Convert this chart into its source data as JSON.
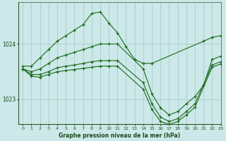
{
  "background_color": "#cce8e8",
  "grid_color": "#aacccc",
  "line_color": "#1a6b1a",
  "title": "Graphe pression niveau de la mer (hPa)",
  "xlim": [
    -0.5,
    23
  ],
  "ylim": [
    1022.55,
    1024.75
  ],
  "yticks": [
    1023,
    1024
  ],
  "xticks": [
    0,
    1,
    2,
    3,
    4,
    5,
    6,
    7,
    8,
    9,
    10,
    11,
    12,
    13,
    14,
    15,
    16,
    17,
    18,
    19,
    20,
    21,
    22,
    23
  ],
  "series": [
    {
      "x": [
        0,
        1,
        2,
        3,
        4,
        5,
        6,
        7,
        8,
        9,
        10,
        11,
        12,
        13,
        14,
        15,
        21,
        22,
        23
      ],
      "y": [
        1023.6,
        1023.6,
        1023.75,
        1023.9,
        1024.05,
        1024.15,
        1024.25,
        1024.35,
        1024.55,
        1024.58,
        1024.38,
        1024.2,
        1023.95,
        1023.72,
        1023.65,
        1023.65,
        1024.05,
        1024.12,
        1024.15
      ]
    },
    {
      "x": [
        0,
        1,
        2,
        3,
        4,
        5,
        6,
        7,
        8,
        9,
        10,
        11,
        14,
        15,
        16,
        17,
        18,
        19,
        20,
        21,
        22,
        23
      ],
      "y": [
        1023.55,
        1023.5,
        1023.55,
        1023.65,
        1023.75,
        1023.8,
        1023.85,
        1023.9,
        1023.95,
        1024.0,
        1024.0,
        1024.0,
        1023.55,
        1023.1,
        1022.85,
        1022.72,
        1022.78,
        1022.92,
        1023.05,
        1023.25,
        1023.72,
        1023.78
      ]
    },
    {
      "x": [
        0,
        1,
        2,
        3,
        4,
        5,
        6,
        7,
        8,
        9,
        10,
        11,
        14,
        15,
        16,
        17,
        18,
        19,
        20,
        22,
        23
      ],
      "y": [
        1023.55,
        1023.45,
        1023.45,
        1023.5,
        1023.57,
        1023.6,
        1023.62,
        1023.65,
        1023.68,
        1023.7,
        1023.7,
        1023.7,
        1023.3,
        1022.92,
        1022.68,
        1022.6,
        1022.65,
        1022.78,
        1022.92,
        1023.62,
        1023.68
      ]
    },
    {
      "x": [
        0,
        1,
        2,
        3,
        4,
        5,
        6,
        7,
        8,
        9,
        10,
        11,
        14,
        15,
        16,
        17,
        18,
        19,
        20,
        22,
        23
      ],
      "y": [
        1023.55,
        1023.42,
        1023.4,
        1023.45,
        1023.5,
        1023.52,
        1023.54,
        1023.56,
        1023.58,
        1023.6,
        1023.6,
        1023.6,
        1023.18,
        1022.82,
        1022.6,
        1022.55,
        1022.6,
        1022.72,
        1022.86,
        1023.58,
        1023.64
      ]
    }
  ]
}
